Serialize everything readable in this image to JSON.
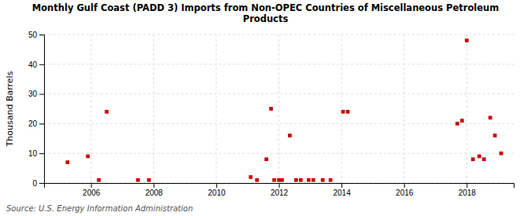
{
  "chart_data": {
    "type": "scatter",
    "title": "Monthly Gulf Coast (PADD 3) Imports from Non-OPEC Countries of Miscellaneous Petroleum\nProducts",
    "y_label": "Thousand Barrels",
    "annotations": [
      "Source: U.S. Energy Information Administration"
    ],
    "x": [
      2005.25,
      2005.9,
      2006.25,
      2006.5,
      2007.5,
      2007.85,
      2011.1,
      2011.3,
      2011.6,
      2011.75,
      2011.85,
      2012.0,
      2012.1,
      2012.35,
      2012.55,
      2012.7,
      2012.95,
      2013.1,
      2013.4,
      2013.65,
      2014.05,
      2014.2,
      2017.7,
      2017.85,
      2018.0,
      2018.2,
      2018.4,
      2018.55,
      2018.75,
      2018.9,
      2019.1
    ],
    "values": [
      7,
      9,
      1,
      24,
      1,
      1,
      2,
      1,
      8,
      25,
      1,
      1,
      1,
      16,
      1,
      1,
      1,
      1,
      1,
      1,
      24,
      24,
      20,
      21,
      48,
      8,
      9,
      8,
      22,
      16,
      10
    ],
    "color": "#cc0000",
    "marker": "square",
    "xlim": [
      2004.5,
      2019.5
    ],
    "ylim": [
      0,
      50
    ],
    "xticks": [
      2006,
      2008,
      2010,
      2012,
      2014,
      2016,
      2018
    ],
    "yticks": [
      0,
      10,
      20,
      30,
      40,
      50
    ],
    "grid": true
  }
}
